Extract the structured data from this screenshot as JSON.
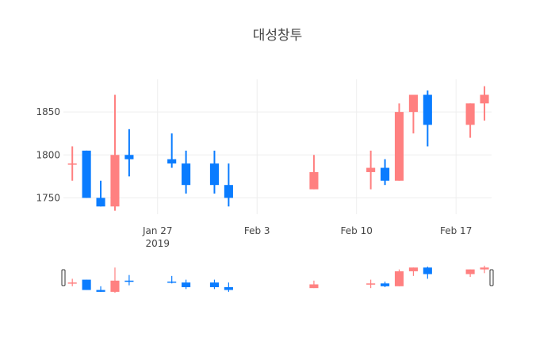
{
  "chart_data": {
    "type": "candlestick",
    "title": "대성창투",
    "xlabel": "",
    "ylabel": "",
    "ylim": [
      1731,
      1888
    ],
    "xlim": [
      "2019-01-20T09:00",
      "2019-02-19T12:00"
    ],
    "y_ticks": [
      1750,
      1800,
      1850
    ],
    "x_ticks": [
      {
        "date": "2019-01-27",
        "label": "Jan 27",
        "sublabel": "2019"
      },
      {
        "date": "2019-02-03",
        "label": "Feb 3",
        "sublabel": ""
      },
      {
        "date": "2019-02-10",
        "label": "Feb 10",
        "sublabel": ""
      },
      {
        "date": "2019-02-17",
        "label": "Feb 17",
        "sublabel": ""
      }
    ],
    "increasing_color": "#ff8080",
    "decreasing_color": "#0a7cff",
    "grid": true,
    "range_slider": true,
    "candles": [
      {
        "date": "2019-01-21",
        "open": 1790,
        "high": 1810,
        "low": 1770,
        "close": 1790
      },
      {
        "date": "2019-01-22",
        "open": 1805,
        "high": 1805,
        "low": 1750,
        "close": 1750
      },
      {
        "date": "2019-01-23",
        "open": 1750,
        "high": 1770,
        "low": 1740,
        "close": 1740
      },
      {
        "date": "2019-01-24",
        "open": 1740,
        "high": 1870,
        "low": 1735,
        "close": 1800
      },
      {
        "date": "2019-01-25",
        "open": 1800,
        "high": 1830,
        "low": 1775,
        "close": 1795
      },
      {
        "date": "2019-01-28",
        "open": 1795,
        "high": 1825,
        "low": 1785,
        "close": 1790
      },
      {
        "date": "2019-01-29",
        "open": 1790,
        "high": 1805,
        "low": 1755,
        "close": 1765
      },
      {
        "date": "2019-01-31",
        "open": 1790,
        "high": 1805,
        "low": 1755,
        "close": 1765
      },
      {
        "date": "2019-02-01",
        "open": 1765,
        "high": 1790,
        "low": 1740,
        "close": 1750
      },
      {
        "date": "2019-02-07",
        "open": 1760,
        "high": 1800,
        "low": 1760,
        "close": 1780
      },
      {
        "date": "2019-02-11",
        "open": 1780,
        "high": 1805,
        "low": 1760,
        "close": 1785
      },
      {
        "date": "2019-02-12",
        "open": 1785,
        "high": 1795,
        "low": 1765,
        "close": 1770
      },
      {
        "date": "2019-02-13",
        "open": 1770,
        "high": 1860,
        "low": 1770,
        "close": 1850
      },
      {
        "date": "2019-02-14",
        "open": 1850,
        "high": 1870,
        "low": 1825,
        "close": 1870
      },
      {
        "date": "2019-02-15",
        "open": 1870,
        "high": 1875,
        "low": 1810,
        "close": 1835
      },
      {
        "date": "2019-02-18",
        "open": 1835,
        "high": 1860,
        "low": 1820,
        "close": 1860
      },
      {
        "date": "2019-02-19",
        "open": 1860,
        "high": 1880,
        "low": 1840,
        "close": 1870
      }
    ]
  }
}
